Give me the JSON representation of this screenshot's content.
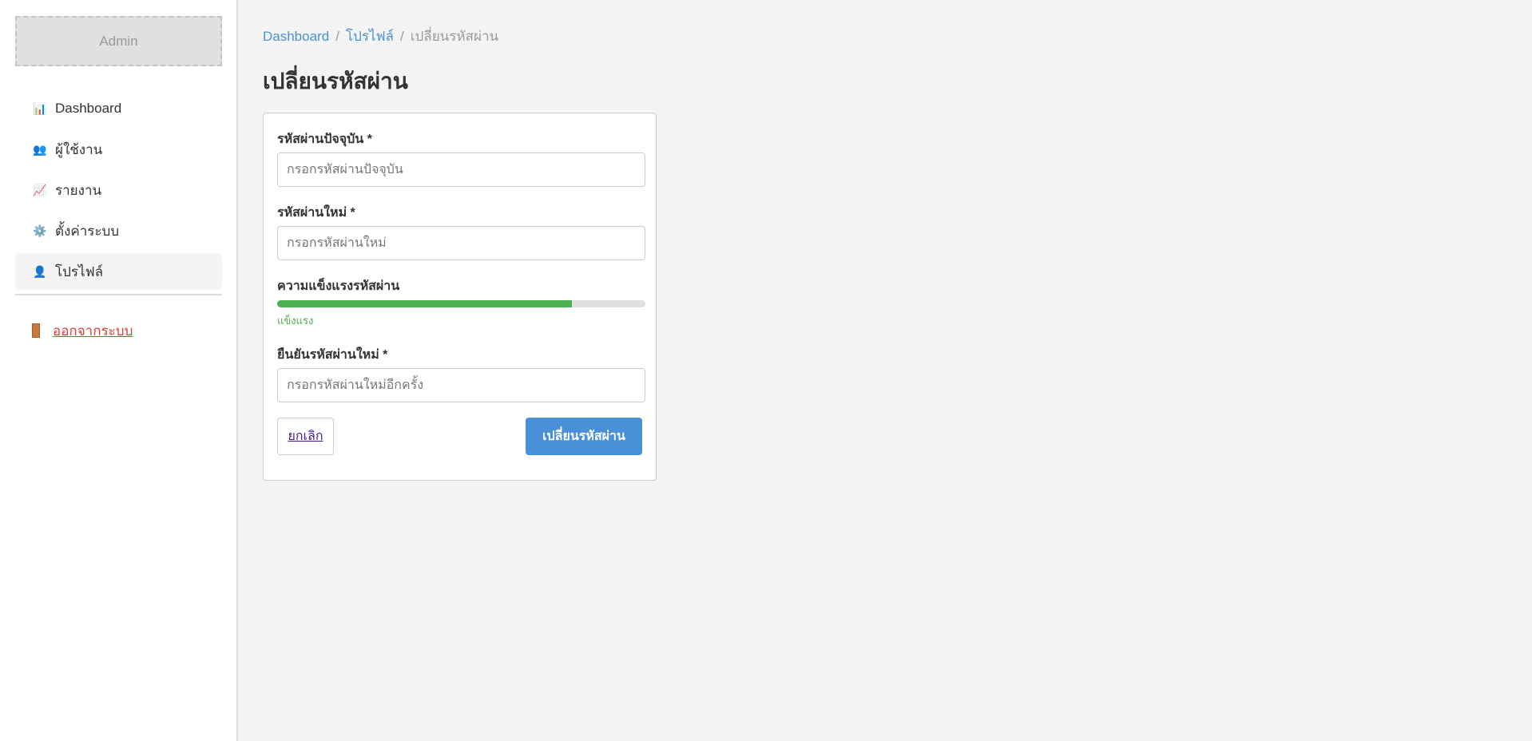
{
  "sidebar": {
    "logo": "Admin",
    "items": [
      {
        "label": "Dashboard",
        "icon": "bar-chart-icon",
        "glyph": "📊"
      },
      {
        "label": "ผู้ใช้งาน",
        "icon": "users-icon",
        "glyph": "👥"
      },
      {
        "label": "รายงาน",
        "icon": "line-chart-icon",
        "glyph": "📈"
      },
      {
        "label": "ตั้งค่าระบบ",
        "icon": "gear-icon",
        "glyph": "⚙️"
      },
      {
        "label": "โปรไฟล์",
        "icon": "user-icon",
        "glyph": "👤",
        "active": true
      }
    ],
    "logout": "ออกจากระบบ"
  },
  "breadcrumb": [
    "Dashboard",
    "โปรไฟล์",
    "เปลี่ยนรหัสผ่าน"
  ],
  "page_title": "เปลี่ยนรหัสผ่าน",
  "form": {
    "current": {
      "label": "รหัสผ่านปัจจุบัน *",
      "placeholder": "กรอกรหัสผ่านปัจจุบัน",
      "value": ""
    },
    "new": {
      "label": "รหัสผ่านใหม่ *",
      "placeholder": "กรอกรหัสผ่านใหม่",
      "value": ""
    },
    "strength": {
      "label": "ความแข็งแรงรหัสผ่าน",
      "text": "แข็งแรง",
      "percent": 80,
      "color": "#4caf50"
    },
    "confirm": {
      "label": "ยืนยันรหัสผ่านใหม่ *",
      "placeholder": "กรอกรหัสผ่านใหม่อีกครั้ง",
      "value": ""
    },
    "cancel": "ยกเลิก",
    "submit": "เปลี่ยนรหัสผ่าน"
  },
  "colors": {
    "accent": "#4a90d9",
    "danger": "#e53935",
    "success": "#4caf50"
  }
}
